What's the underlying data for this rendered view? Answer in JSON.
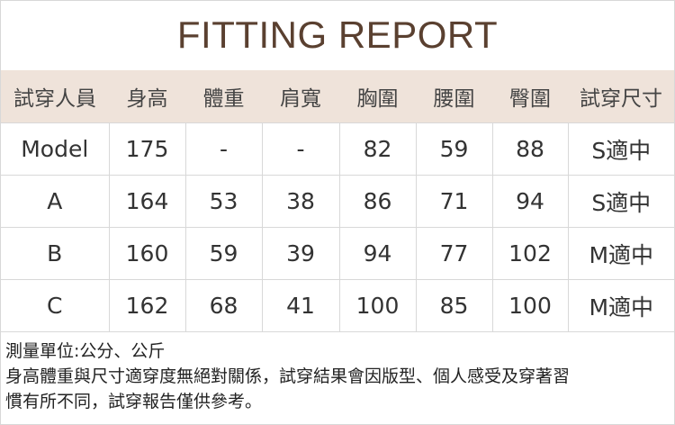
{
  "title": "FITTING REPORT",
  "table": {
    "headers": [
      "試穿人員",
      "身高",
      "體重",
      "肩寬",
      "胸圍",
      "腰圍",
      "臀圍",
      "試穿尺寸"
    ],
    "rows": [
      [
        "Model",
        "175",
        "-",
        "-",
        "82",
        "59",
        "88",
        "S適中"
      ],
      [
        "A",
        "164",
        "53",
        "38",
        "86",
        "71",
        "94",
        "S適中"
      ],
      [
        "B",
        "160",
        "59",
        "39",
        "94",
        "77",
        "102",
        "M適中"
      ],
      [
        "C",
        "162",
        "68",
        "41",
        "100",
        "85",
        "100",
        "M適中"
      ]
    ]
  },
  "notes": {
    "unit": "測量單位:公分、公斤",
    "disclaimer_line1": "身高體重與尺寸適穿度無絕對關係，試穿結果會因版型、個人感受及穿著習",
    "disclaimer_line2": "慣有所不同，試穿報告僅供參考。"
  },
  "colors": {
    "title": "#5a4030",
    "header_bg": "#efe3da"
  }
}
